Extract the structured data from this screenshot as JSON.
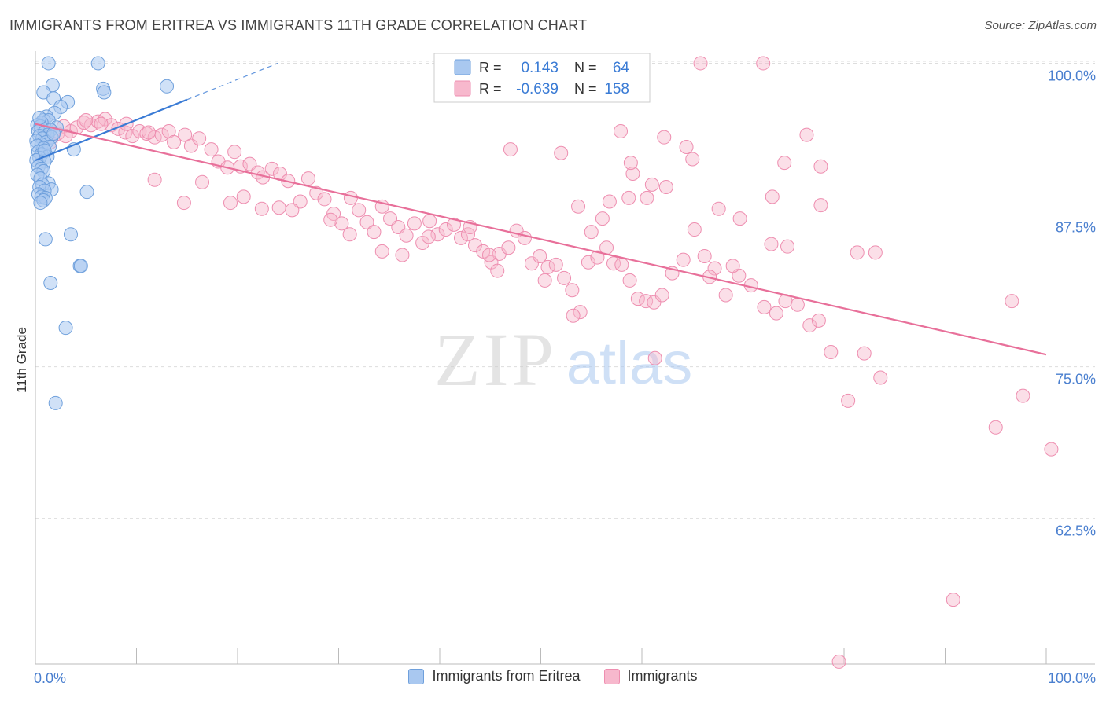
{
  "header": {
    "title": "IMMIGRANTS FROM ERITREA VS IMMIGRANTS 11TH GRADE CORRELATION CHART",
    "source": "Source: ZipAtlas.com"
  },
  "watermark": {
    "zip": "ZIP",
    "atlas": "atlas"
  },
  "colors": {
    "blue_fill": "#a9c8f0",
    "blue_stroke": "#6fa0dc",
    "blue_line": "#3a7bd5",
    "pink_fill": "#f7b8cd",
    "pink_stroke": "#ee8eb0",
    "pink_line": "#e8709a",
    "tick_label": "#4a7fcf",
    "grid": "#dddddd"
  },
  "legend_box": {
    "rows": [
      {
        "r_label": "R =",
        "r_value": "0.143",
        "n_label": "N =",
        "n_value": "64",
        "color": "blue"
      },
      {
        "r_label": "R =",
        "r_value": "-0.639",
        "n_label": "N =",
        "n_value": "158",
        "color": "pink"
      }
    ]
  },
  "legend_bottom": [
    {
      "label": "Immigrants from Eritrea",
      "color": "blue"
    },
    {
      "label": "Immigrants",
      "color": "pink"
    }
  ],
  "chart_data": {
    "type": "scatter",
    "title": "IMMIGRANTS FROM ERITREA VS IMMIGRANTS 11TH GRADE CORRELATION CHART",
    "xlabel": "",
    "ylabel": "11th Grade",
    "xlim": [
      0,
      100
    ],
    "ylim": [
      50.5,
      101
    ],
    "x_tick_labels": [
      {
        "value": 0,
        "label": "0.0%"
      },
      {
        "value": 100,
        "label": "100.0%"
      }
    ],
    "y_tick_labels": [
      {
        "value": 100,
        "label": "100.0%"
      },
      {
        "value": 87.5,
        "label": "87.5%"
      },
      {
        "value": 75,
        "label": "75.0%"
      },
      {
        "value": 62.5,
        "label": "62.5%"
      }
    ],
    "x_minor_ticks": [
      10,
      20,
      30,
      40,
      50,
      60,
      70,
      80,
      90,
      100
    ],
    "grid": true,
    "series": [
      {
        "name": "Immigrants from Eritrea",
        "color": "blue",
        "points": [
          [
            1.3,
            100
          ],
          [
            6.2,
            100
          ],
          [
            1.7,
            98.2
          ],
          [
            6.7,
            97.9
          ],
          [
            13,
            98.1
          ],
          [
            0.8,
            97.6
          ],
          [
            1.8,
            97.1
          ],
          [
            3.2,
            96.8
          ],
          [
            2.5,
            96.4
          ],
          [
            1.9,
            95.9
          ],
          [
            1.1,
            95.6
          ],
          [
            0.8,
            95.3
          ],
          [
            1.3,
            95.3
          ],
          [
            0.6,
            95.1
          ],
          [
            0.2,
            94.9
          ],
          [
            0.5,
            94.8
          ],
          [
            2.1,
            94.7
          ],
          [
            1.5,
            94.5
          ],
          [
            0.3,
            94.4
          ],
          [
            0.9,
            94.3
          ],
          [
            1.2,
            94.1
          ],
          [
            0.4,
            94.0
          ],
          [
            1.6,
            93.9
          ],
          [
            0.7,
            93.8
          ],
          [
            0.1,
            93.6
          ],
          [
            1.1,
            93.5
          ],
          [
            0.6,
            93.3
          ],
          [
            0.2,
            93.2
          ],
          [
            1.4,
            93.1
          ],
          [
            0.8,
            93.0
          ],
          [
            3.8,
            92.9
          ],
          [
            0.3,
            92.7
          ],
          [
            0.6,
            92.5
          ],
          [
            1.2,
            92.3
          ],
          [
            0.4,
            92.2
          ],
          [
            0.1,
            92.0
          ],
          [
            0.9,
            91.9
          ],
          [
            0.3,
            91.5
          ],
          [
            0.6,
            91.3
          ],
          [
            0.8,
            91.1
          ],
          [
            0.2,
            90.8
          ],
          [
            0.5,
            90.5
          ],
          [
            1.3,
            90.1
          ],
          [
            0.7,
            90.0
          ],
          [
            0.4,
            89.8
          ],
          [
            1.6,
            89.6
          ],
          [
            0.9,
            89.5
          ],
          [
            5.1,
            89.4
          ],
          [
            0.3,
            89.2
          ],
          [
            0.6,
            89.0
          ],
          [
            1.0,
            88.9
          ],
          [
            0.8,
            88.7
          ],
          [
            0.5,
            88.5
          ],
          [
            3.5,
            85.9
          ],
          [
            1.0,
            85.5
          ],
          [
            4.4,
            83.3
          ],
          [
            4.5,
            83.3
          ],
          [
            1.5,
            81.9
          ],
          [
            3.0,
            78.2
          ],
          [
            2.0,
            72.0
          ],
          [
            6.8,
            97.6
          ],
          [
            0.4,
            95.5
          ],
          [
            1.8,
            94.2
          ],
          [
            0.9,
            92.8
          ]
        ]
      },
      {
        "name": "Immigrants",
        "color": "pink",
        "points": [
          [
            65.8,
            100
          ],
          [
            72,
            100
          ],
          [
            0.8,
            94.9
          ],
          [
            1.5,
            94.5
          ],
          [
            2.2,
            94.2
          ],
          [
            2.8,
            94.8
          ],
          [
            3.5,
            94.4
          ],
          [
            4.1,
            94.7
          ],
          [
            4.8,
            95.1
          ],
          [
            5.5,
            94.9
          ],
          [
            6.2,
            95.2
          ],
          [
            6.9,
            95.4
          ],
          [
            7.5,
            94.9
          ],
          [
            8.2,
            94.6
          ],
          [
            8.9,
            94.3
          ],
          [
            9.6,
            94.0
          ],
          [
            10.3,
            94.4
          ],
          [
            11.0,
            94.2
          ],
          [
            11.8,
            93.9
          ],
          [
            12.5,
            94.1
          ],
          [
            13.2,
            94.4
          ],
          [
            1.5,
            93.5
          ],
          [
            3.0,
            94.0
          ],
          [
            5.0,
            95.3
          ],
          [
            6.5,
            95.0
          ],
          [
            9.0,
            95.0
          ],
          [
            11.2,
            94.3
          ],
          [
            13.7,
            93.5
          ],
          [
            14.8,
            94.1
          ],
          [
            15.4,
            93.2
          ],
          [
            16.2,
            93.8
          ],
          [
            17.4,
            92.9
          ],
          [
            18.1,
            91.9
          ],
          [
            19.0,
            91.4
          ],
          [
            19.7,
            92.7
          ],
          [
            20.3,
            91.5
          ],
          [
            21.2,
            91.7
          ],
          [
            22.0,
            91.0
          ],
          [
            22.5,
            90.6
          ],
          [
            23.4,
            91.3
          ],
          [
            24.2,
            90.9
          ],
          [
            25.0,
            90.3
          ],
          [
            26.2,
            88.6
          ],
          [
            27.0,
            90.5
          ],
          [
            27.8,
            89.3
          ],
          [
            28.6,
            88.8
          ],
          [
            29.5,
            87.6
          ],
          [
            30.3,
            86.8
          ],
          [
            31.2,
            88.9
          ],
          [
            32.0,
            87.9
          ],
          [
            32.8,
            86.9
          ],
          [
            33.5,
            86.1
          ],
          [
            34.3,
            88.2
          ],
          [
            35.1,
            87.2
          ],
          [
            35.9,
            86.5
          ],
          [
            36.7,
            85.8
          ],
          [
            37.5,
            86.8
          ],
          [
            38.3,
            85.2
          ],
          [
            39.0,
            87.0
          ],
          [
            39.8,
            85.9
          ],
          [
            40.6,
            86.3
          ],
          [
            41.4,
            86.7
          ],
          [
            42.1,
            85.6
          ],
          [
            42.8,
            85.9
          ],
          [
            43.5,
            85.0
          ],
          [
            44.3,
            84.5
          ],
          [
            45.1,
            83.6
          ],
          [
            45.9,
            84.3
          ],
          [
            46.8,
            84.8
          ],
          [
            47.6,
            86.2
          ],
          [
            48.4,
            85.6
          ],
          [
            49.1,
            83.5
          ],
          [
            49.9,
            84.1
          ],
          [
            50.7,
            83.2
          ],
          [
            51.5,
            83.4
          ],
          [
            52.3,
            82.3
          ],
          [
            53.1,
            81.3
          ],
          [
            53.9,
            79.5
          ],
          [
            54.7,
            83.6
          ],
          [
            55.6,
            84.0
          ],
          [
            56.5,
            84.8
          ],
          [
            57.2,
            83.5
          ],
          [
            58.0,
            83.4
          ],
          [
            58.8,
            82.1
          ],
          [
            59.6,
            80.6
          ],
          [
            60.4,
            80.4
          ],
          [
            61.2,
            80.3
          ],
          [
            62.0,
            80.9
          ],
          [
            63.0,
            82.7
          ],
          [
            64.1,
            83.8
          ],
          [
            65.2,
            86.3
          ],
          [
            66.2,
            84.1
          ],
          [
            67.2,
            83.1
          ],
          [
            68.3,
            80.9
          ],
          [
            69.6,
            82.5
          ],
          [
            70.8,
            81.7
          ],
          [
            72.1,
            79.9
          ],
          [
            73.3,
            79.4
          ],
          [
            74.2,
            80.4
          ],
          [
            75.4,
            80.1
          ],
          [
            76.6,
            78.4
          ],
          [
            77.5,
            78.8
          ],
          [
            78.7,
            76.2
          ],
          [
            80.4,
            72.2
          ],
          [
            82.0,
            76.1
          ],
          [
            83.6,
            74.1
          ],
          [
            95.0,
            70.0
          ],
          [
            96.6,
            80.4
          ],
          [
            97.7,
            72.6
          ],
          [
            100.5,
            68.2
          ],
          [
            59.1,
            90.9
          ],
          [
            53.7,
            88.2
          ],
          [
            47.0,
            92.9
          ],
          [
            52.0,
            92.6
          ],
          [
            58.9,
            91.8
          ],
          [
            55.0,
            86.1
          ],
          [
            72.9,
            89.0
          ],
          [
            77.7,
            88.3
          ],
          [
            81.3,
            84.4
          ],
          [
            83.1,
            84.4
          ],
          [
            74.1,
            91.8
          ],
          [
            74.4,
            84.9
          ],
          [
            76.3,
            94.1
          ],
          [
            77.7,
            91.5
          ],
          [
            72.8,
            85.1
          ],
          [
            69.7,
            87.2
          ],
          [
            69.0,
            83.3
          ],
          [
            64.4,
            93.1
          ],
          [
            62.2,
            93.9
          ],
          [
            60.5,
            88.9
          ],
          [
            56.1,
            87.2
          ],
          [
            50.4,
            82.1
          ],
          [
            45.7,
            82.9
          ],
          [
            44.9,
            84.2
          ],
          [
            43.0,
            86.5
          ],
          [
            38.9,
            85.7
          ],
          [
            36.3,
            84.2
          ],
          [
            34.3,
            84.5
          ],
          [
            31.1,
            85.9
          ],
          [
            29.2,
            87.1
          ],
          [
            25.4,
            87.9
          ],
          [
            24.1,
            88.1
          ],
          [
            22.4,
            88.0
          ],
          [
            20.6,
            89.0
          ],
          [
            19.3,
            88.5
          ],
          [
            16.5,
            90.2
          ],
          [
            14.7,
            88.5
          ],
          [
            11.8,
            90.4
          ],
          [
            57.9,
            94.4
          ],
          [
            61.0,
            90.0
          ],
          [
            62.4,
            89.8
          ],
          [
            53.2,
            79.2
          ],
          [
            56.8,
            88.6
          ],
          [
            58.7,
            88.9
          ],
          [
            66.7,
            82.4
          ],
          [
            67.6,
            88.0
          ],
          [
            65.0,
            92.1
          ],
          [
            90.8,
            55.8
          ],
          [
            79.5,
            50.7
          ],
          [
            61.3,
            75.7
          ]
        ]
      }
    ],
    "trend_lines": [
      {
        "series": "Immigrants from Eritrea",
        "solid": [
          [
            0,
            92.0
          ],
          [
            15,
            97.0
          ]
        ],
        "dashed": [
          [
            15,
            97.0
          ],
          [
            24,
            100.0
          ]
        ]
      },
      {
        "series": "Immigrants",
        "solid": [
          [
            0,
            95.0
          ],
          [
            100,
            76.0
          ]
        ]
      }
    ]
  }
}
